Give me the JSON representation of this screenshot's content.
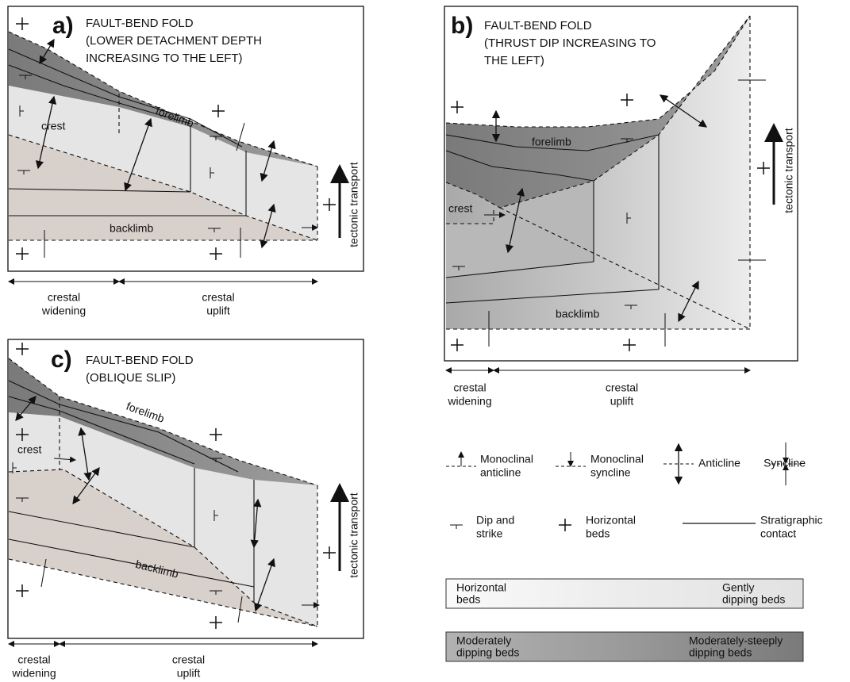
{
  "panels": [
    {
      "label": "a)",
      "title": [
        "FAULT-BEND FOLD",
        "(LOWER DETACHMENT DEPTH",
        "INCREASING TO THE LEFT)"
      ],
      "forelimb": "forelimb",
      "crest": "crest",
      "backlimb": "backlimb",
      "transport": "tectonic transport",
      "widening": [
        "crestal",
        "widening"
      ],
      "uplift": [
        "crestal",
        "uplift"
      ]
    },
    {
      "label": "b)",
      "title": [
        "FAULT-BEND FOLD",
        "(THRUST DIP INCREASING TO",
        "THE LEFT)"
      ],
      "forelimb": "forelimb",
      "crest": "crest",
      "backlimb": "backlimb",
      "transport": "tectonic transport",
      "widening": [
        "crestal",
        "widening"
      ],
      "uplift": [
        "crestal",
        "uplift"
      ]
    },
    {
      "label": "c)",
      "title": [
        "FAULT-BEND FOLD",
        "(OBLIQUE SLIP)"
      ],
      "forelimb": "forelimb",
      "crest": "crest",
      "backlimb": "backlimb",
      "transport": "tectonic transport",
      "widening": [
        "crestal",
        "widening"
      ],
      "uplift": [
        "crestal",
        "uplift"
      ]
    }
  ],
  "legend": {
    "symbols": [
      {
        "label": [
          "Monoclinal",
          "anticline"
        ]
      },
      {
        "label": [
          "Monoclinal",
          "syncline"
        ]
      },
      {
        "label": [
          "Anticline"
        ]
      },
      {
        "label": [
          "Syncline"
        ]
      },
      {
        "label": [
          "Dip and",
          "strike"
        ]
      },
      {
        "label": [
          "Horizontal",
          "beds"
        ]
      },
      {
        "label": [
          "Stratigraphic",
          "contact"
        ]
      }
    ],
    "shading": [
      {
        "left": [
          "Horizontal",
          "beds"
        ],
        "right": [
          "Gently",
          "dipping beds"
        ]
      },
      {
        "left": [
          "Moderately",
          "dipping beds"
        ],
        "right": [
          "Moderately-steeply",
          "dipping beds"
        ]
      }
    ]
  }
}
